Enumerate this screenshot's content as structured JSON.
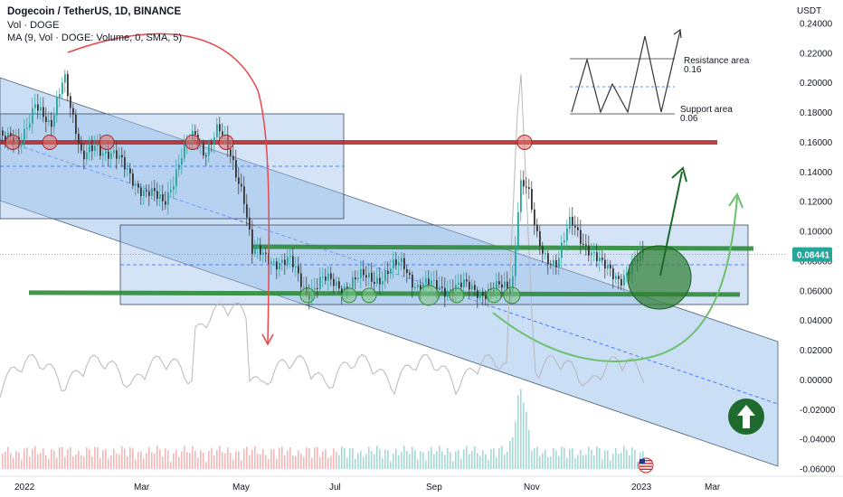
{
  "header": {
    "symbol": "Dogecoin / TetherUS, 1D, BINANCE",
    "volume_label": "Vol · DOGE",
    "ma_label": "MA (9, Vol · DOGE: Volume, 0, SMA, 5)"
  },
  "chart_data": {
    "type": "candlestick",
    "title": "Dogecoin / TetherUS, 1D, BINANCE",
    "currency_label": "USDT",
    "y_ticks": [
      "0.24000",
      "0.22000",
      "0.20000",
      "0.18000",
      "0.16000",
      "0.14000",
      "0.12000",
      "0.10000",
      "0.08000",
      "0.06000",
      "0.04000",
      "0.02000",
      "0.00000",
      "-0.02000",
      "-0.04000",
      "-0.06000"
    ],
    "y_tick_values": [
      0.24,
      0.22,
      0.2,
      0.18,
      0.16,
      0.14,
      0.12,
      0.1,
      0.08,
      0.06,
      0.04,
      0.02,
      0.0,
      -0.02,
      -0.04,
      -0.06
    ],
    "ylim": [
      -0.064,
      0.246
    ],
    "x_ticks": [
      "2022",
      "Mar",
      "May",
      "Jul",
      "Sep",
      "Nov",
      "2023",
      "Mar"
    ],
    "last_price": "0.08441",
    "last_price_value": 0.08441,
    "grid": false,
    "annotations": {
      "resistance_label": "Resistance area",
      "resistance_value": "0.16",
      "support_label": "Support area",
      "support_value": "0.06",
      "resistance_level": 0.16,
      "support_level": 0.0575,
      "breakout_level": 0.0885
    },
    "colors": {
      "up": "#26a69a",
      "down": "#333333",
      "resistance": "#b22222",
      "support": "#2e8b3a",
      "channel_fill": "#9fc2ec",
      "volume_ma": "#b8b8b8",
      "arrow_red": "#e8474b",
      "arrow_green_dark": "#1b6b2a",
      "arrow_green_light": "#6dc06d",
      "price_badge": "#26a69a"
    },
    "icons": [
      "arrow-up-circle-icon",
      "us-flag-icon"
    ]
  }
}
